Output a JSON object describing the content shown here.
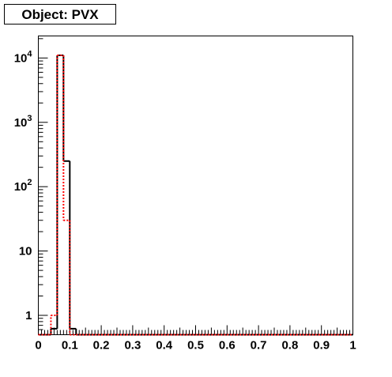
{
  "chart_data": {
    "type": "histogram",
    "title": "Object: PVX",
    "bins": [
      0,
      0.02,
      0.04,
      0.06,
      0.08,
      0.1,
      0.12,
      0.14,
      0.16,
      0.18,
      0.2,
      0.22,
      0.24,
      0.26,
      0.28,
      0.3,
      0.32,
      0.34,
      0.36,
      0.38,
      0.4,
      0.42,
      0.44,
      0.46,
      0.48,
      0.5,
      0.52,
      0.54,
      0.56,
      0.58,
      0.6,
      0.62,
      0.64,
      0.66,
      0.68,
      0.7,
      0.72,
      0.74,
      0.76,
      0.78,
      0.8,
      0.82,
      0.84,
      0.86,
      0.88,
      0.9,
      0.92,
      0.94,
      0.96,
      0.98,
      1
    ],
    "series": [
      {
        "color": "#000000",
        "dash": false,
        "values": [
          0,
          0,
          0.62,
          11000,
          250,
          0.62,
          0,
          0,
          0,
          0,
          0,
          0,
          0,
          0,
          0,
          0,
          0,
          0,
          0,
          0,
          0,
          0,
          0,
          0,
          0,
          0,
          0,
          0,
          0,
          0,
          0,
          0,
          0,
          0,
          0,
          0,
          0,
          0,
          0,
          0,
          0,
          0,
          0,
          0,
          0,
          0,
          0,
          0,
          0,
          0
        ]
      },
      {
        "color": "#ff0000",
        "dash": true,
        "values": [
          0,
          0,
          1,
          11000,
          30,
          0,
          0,
          0,
          0,
          0,
          0,
          0,
          0,
          0,
          0,
          0,
          0,
          0,
          0,
          0,
          0,
          0,
          0,
          0,
          0,
          0,
          0,
          0,
          0,
          0,
          0,
          0,
          0,
          0,
          0,
          0,
          0,
          0,
          0,
          0,
          0,
          0,
          0,
          0,
          0,
          0,
          0,
          0,
          0,
          0
        ]
      }
    ],
    "xlim": [
      0,
      1
    ],
    "xticks": [
      0,
      0.1,
      0.2,
      0.3,
      0.4,
      0.5,
      0.6,
      0.7,
      0.8,
      0.9,
      1
    ],
    "ylim": [
      0.5,
      22000
    ],
    "log_y": true,
    "yticks": [
      1,
      10,
      {
        "value": 100,
        "label": "10^2"
      },
      {
        "value": 1000,
        "label": "10^3"
      },
      {
        "value": 10000,
        "label": "10^4"
      }
    ]
  }
}
